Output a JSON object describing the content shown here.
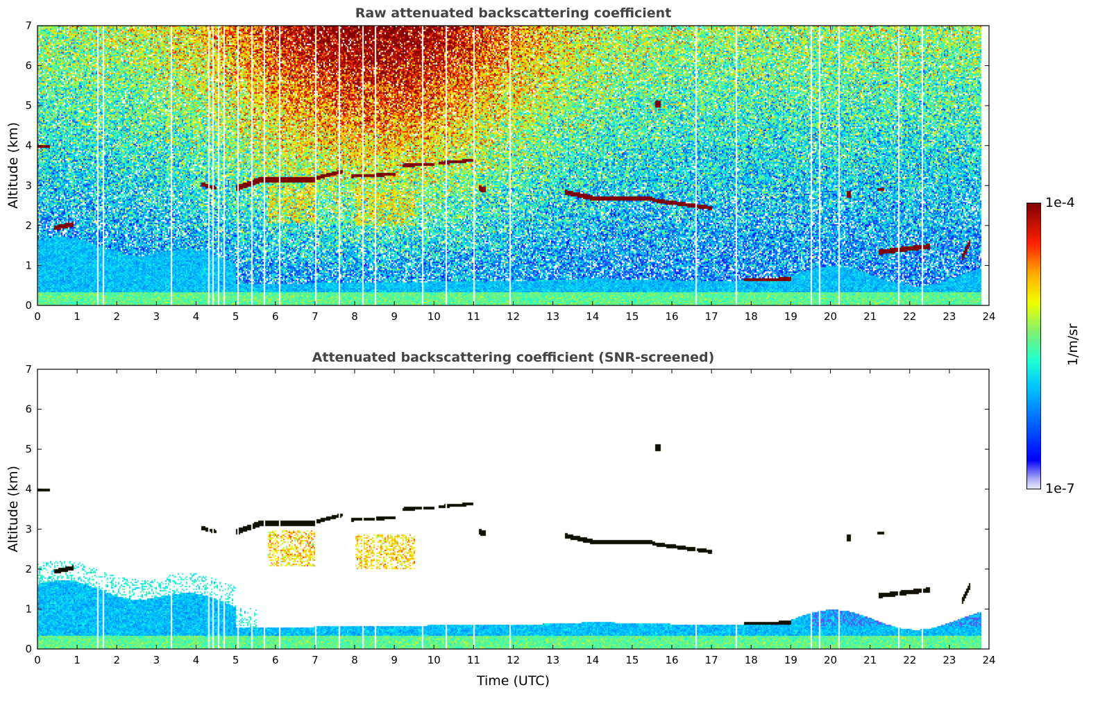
{
  "chart_data": [
    {
      "type": "heatmap",
      "id": "raw",
      "title": "Raw attenuated backscattering coefficient",
      "xlabel": "",
      "ylabel": "Altitude (km)",
      "xlim": [
        0,
        24
      ],
      "ylim": [
        0,
        7
      ],
      "xticks": [
        0,
        1,
        2,
        3,
        4,
        5,
        6,
        7,
        8,
        9,
        10,
        11,
        12,
        13,
        14,
        15,
        16,
        17,
        18,
        19,
        20,
        21,
        22,
        23,
        24
      ],
      "yticks": [
        0,
        1,
        2,
        3,
        4,
        5,
        6,
        7
      ],
      "screened": false
    },
    {
      "type": "heatmap",
      "id": "screened",
      "title": "Attenuated backscattering coefficient (SNR-screened)",
      "xlabel": "Time (UTC)",
      "ylabel": "Altitude (km)",
      "xlim": [
        0,
        24
      ],
      "ylim": [
        0,
        7
      ],
      "xticks": [
        0,
        1,
        2,
        3,
        4,
        5,
        6,
        7,
        8,
        9,
        10,
        11,
        12,
        13,
        14,
        15,
        16,
        17,
        18,
        19,
        20,
        21,
        22,
        23,
        24
      ],
      "yticks": [
        0,
        1,
        2,
        3,
        4,
        5,
        6,
        7
      ],
      "screened": true
    }
  ],
  "colorbar": {
    "label": "1/m/sr",
    "max_label": "1e-4",
    "min_label": "1e-7",
    "log10_range": [
      -7,
      -4
    ],
    "stops": [
      [
        0,
        "#e8e8f8"
      ],
      [
        0.03,
        "#b4b4f4"
      ],
      [
        0.07,
        "#5050f8"
      ],
      [
        0.1,
        "#0000ff"
      ],
      [
        0.36,
        "#00c8ff"
      ],
      [
        0.45,
        "#20ffd0"
      ],
      [
        0.55,
        "#80f070"
      ],
      [
        0.65,
        "#f0ff00"
      ],
      [
        0.75,
        "#ffb000"
      ],
      [
        0.86,
        "#ff2000"
      ],
      [
        1,
        "#800000"
      ]
    ],
    "over_color_screened": "#101000"
  },
  "data_end_time": 23.8,
  "gaps_utc": [
    1.5,
    1.65,
    3.35,
    4.25,
    4.3,
    4.4,
    4.55,
    4.7,
    4.85,
    5.05,
    5.2,
    5.4,
    5.55,
    5.7,
    5.9,
    6.1,
    6.5,
    7.0,
    7.2,
    7.6,
    8.2,
    8.5,
    8.8,
    9.7,
    10.3,
    10.7,
    11.0,
    11.85,
    11.9,
    13.25,
    13.6,
    16.6,
    17.1,
    17.6,
    19.2,
    19.5,
    19.7,
    20.2,
    21.7,
    22.3,
    22.7,
    23.3,
    23.55
  ],
  "cloud_layers": [
    {
      "t": [
        0.0,
        0.3
      ],
      "alt_km": [
        4.0,
        4.0
      ],
      "depth_km": 0.08
    },
    {
      "t": [
        0.4,
        0.9
      ],
      "alt_km": [
        1.95,
        2.05
      ],
      "depth_km": 0.12
    },
    {
      "t": [
        4.1,
        4.5
      ],
      "alt_km": [
        3.05,
        2.95
      ],
      "depth_km": 0.1
    },
    {
      "t": [
        5.0,
        5.6
      ],
      "alt_km": [
        2.95,
        3.15
      ],
      "depth_km": 0.15
    },
    {
      "t": [
        5.6,
        7.0
      ],
      "alt_km": [
        3.15,
        3.15
      ],
      "depth_km": 0.15
    },
    {
      "t": [
        7.0,
        7.7
      ],
      "alt_km": [
        3.2,
        3.38
      ],
      "depth_km": 0.1
    },
    {
      "t": [
        7.9,
        9.0
      ],
      "alt_km": [
        3.25,
        3.3
      ],
      "depth_km": 0.08
    },
    {
      "t": [
        9.2,
        10.0
      ],
      "alt_km": [
        3.52,
        3.55
      ],
      "depth_km": 0.08
    },
    {
      "t": [
        10.1,
        11.0
      ],
      "alt_km": [
        3.58,
        3.65
      ],
      "depth_km": 0.08
    },
    {
      "t": [
        11.1,
        11.3
      ],
      "alt_km": [
        2.95,
        2.9
      ],
      "depth_km": 0.15
    },
    {
      "t": [
        13.3,
        14.0
      ],
      "alt_km": [
        2.85,
        2.7
      ],
      "depth_km": 0.12
    },
    {
      "t": [
        14.0,
        15.5
      ],
      "alt_km": [
        2.7,
        2.68
      ],
      "depth_km": 0.1
    },
    {
      "t": [
        15.5,
        17.0
      ],
      "alt_km": [
        2.65,
        2.45
      ],
      "depth_km": 0.1
    },
    {
      "t": [
        17.8,
        19.0
      ],
      "alt_km": [
        0.65,
        0.68
      ],
      "depth_km": 0.08
    },
    {
      "t": [
        15.55,
        15.7
      ],
      "alt_km": [
        5.05,
        5.05
      ],
      "depth_km": 0.15
    },
    {
      "t": [
        20.4,
        20.5
      ],
      "alt_km": [
        2.8,
        2.8
      ],
      "depth_km": 0.15
    },
    {
      "t": [
        21.15,
        21.35
      ],
      "alt_km": [
        2.92,
        2.92
      ],
      "depth_km": 0.1
    },
    {
      "t": [
        21.2,
        22.5
      ],
      "alt_km": [
        1.35,
        1.5
      ],
      "depth_km": 0.12
    },
    {
      "t": [
        23.3,
        23.5
      ],
      "alt_km": [
        1.2,
        1.6
      ],
      "depth_km": 0.2
    }
  ],
  "aerosol_layers": [
    {
      "t": [
        5.8,
        7.0
      ],
      "alt_km": [
        2.1,
        3.0
      ],
      "log10": -4.9
    },
    {
      "t": [
        8.0,
        9.5
      ],
      "alt_km": [
        2.0,
        2.9
      ],
      "log10": -4.9
    }
  ]
}
